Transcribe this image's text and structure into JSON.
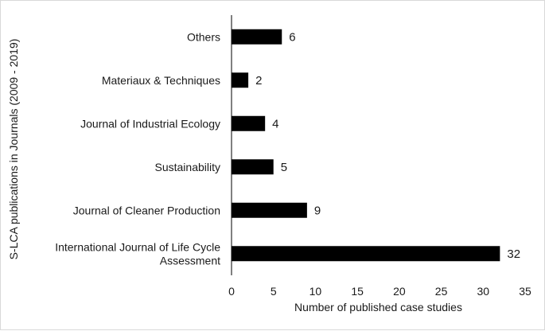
{
  "chart_data": {
    "type": "bar",
    "orientation": "horizontal",
    "categories": [
      "Others",
      "Materiaux & Techniques",
      "Journal of Industrial Ecology",
      "Sustainability",
      "Journal of Cleaner Production",
      "International Journal of Life Cycle Assessment"
    ],
    "category_lines": [
      [
        "Others"
      ],
      [
        "Materiaux & Techniques"
      ],
      [
        "Journal of Industrial Ecology"
      ],
      [
        "Sustainability"
      ],
      [
        "Journal of Cleaner Production"
      ],
      [
        "International Journal of Life Cycle",
        "Assessment"
      ]
    ],
    "values": [
      6,
      2,
      4,
      5,
      9,
      32
    ],
    "data_labels": [
      "6",
      "2",
      "4",
      "5",
      "9",
      "32"
    ],
    "xlabel": "Number of published case studies",
    "ylabel": "S-LCA publications  in Journals (2009 - 2019)",
    "xlim": [
      0,
      35
    ],
    "xticks": [
      0,
      5,
      10,
      15,
      20,
      25,
      30,
      35
    ],
    "xtick_labels": [
      "0",
      "5",
      "10",
      "15",
      "20",
      "25",
      "30",
      "35"
    ],
    "grid": false,
    "legend": "none",
    "bar_color": "#000000"
  }
}
